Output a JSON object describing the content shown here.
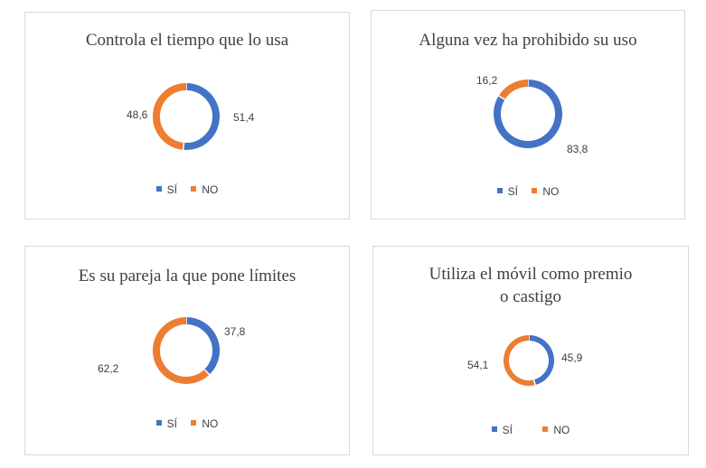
{
  "colors": {
    "si": "#4472c4",
    "no": "#ed7d31"
  },
  "legend": {
    "si": "SÍ",
    "no": "NO"
  },
  "chart_data": [
    {
      "type": "pie",
      "title": "Controla el tiempo que lo usa",
      "categories": [
        "SÍ",
        "NO"
      ],
      "values": [
        51.4,
        48.6
      ],
      "labels": [
        "51,4",
        "48,6"
      ]
    },
    {
      "type": "pie",
      "title": "Alguna vez ha prohibido su uso",
      "categories": [
        "SÍ",
        "NO"
      ],
      "values": [
        83.8,
        16.2
      ],
      "labels": [
        "83,8",
        "16,2"
      ]
    },
    {
      "type": "pie",
      "title": "Es su pareja la que pone límites",
      "categories": [
        "SÍ",
        "NO"
      ],
      "values": [
        37.8,
        62.2
      ],
      "labels": [
        "37,8",
        "62,2"
      ]
    },
    {
      "type": "pie",
      "title": "Utiliza el móvil como premio o castigo",
      "categories": [
        "SÍ",
        "NO"
      ],
      "values": [
        45.9,
        54.1
      ],
      "labels": [
        "45,9",
        "54,1"
      ]
    }
  ]
}
